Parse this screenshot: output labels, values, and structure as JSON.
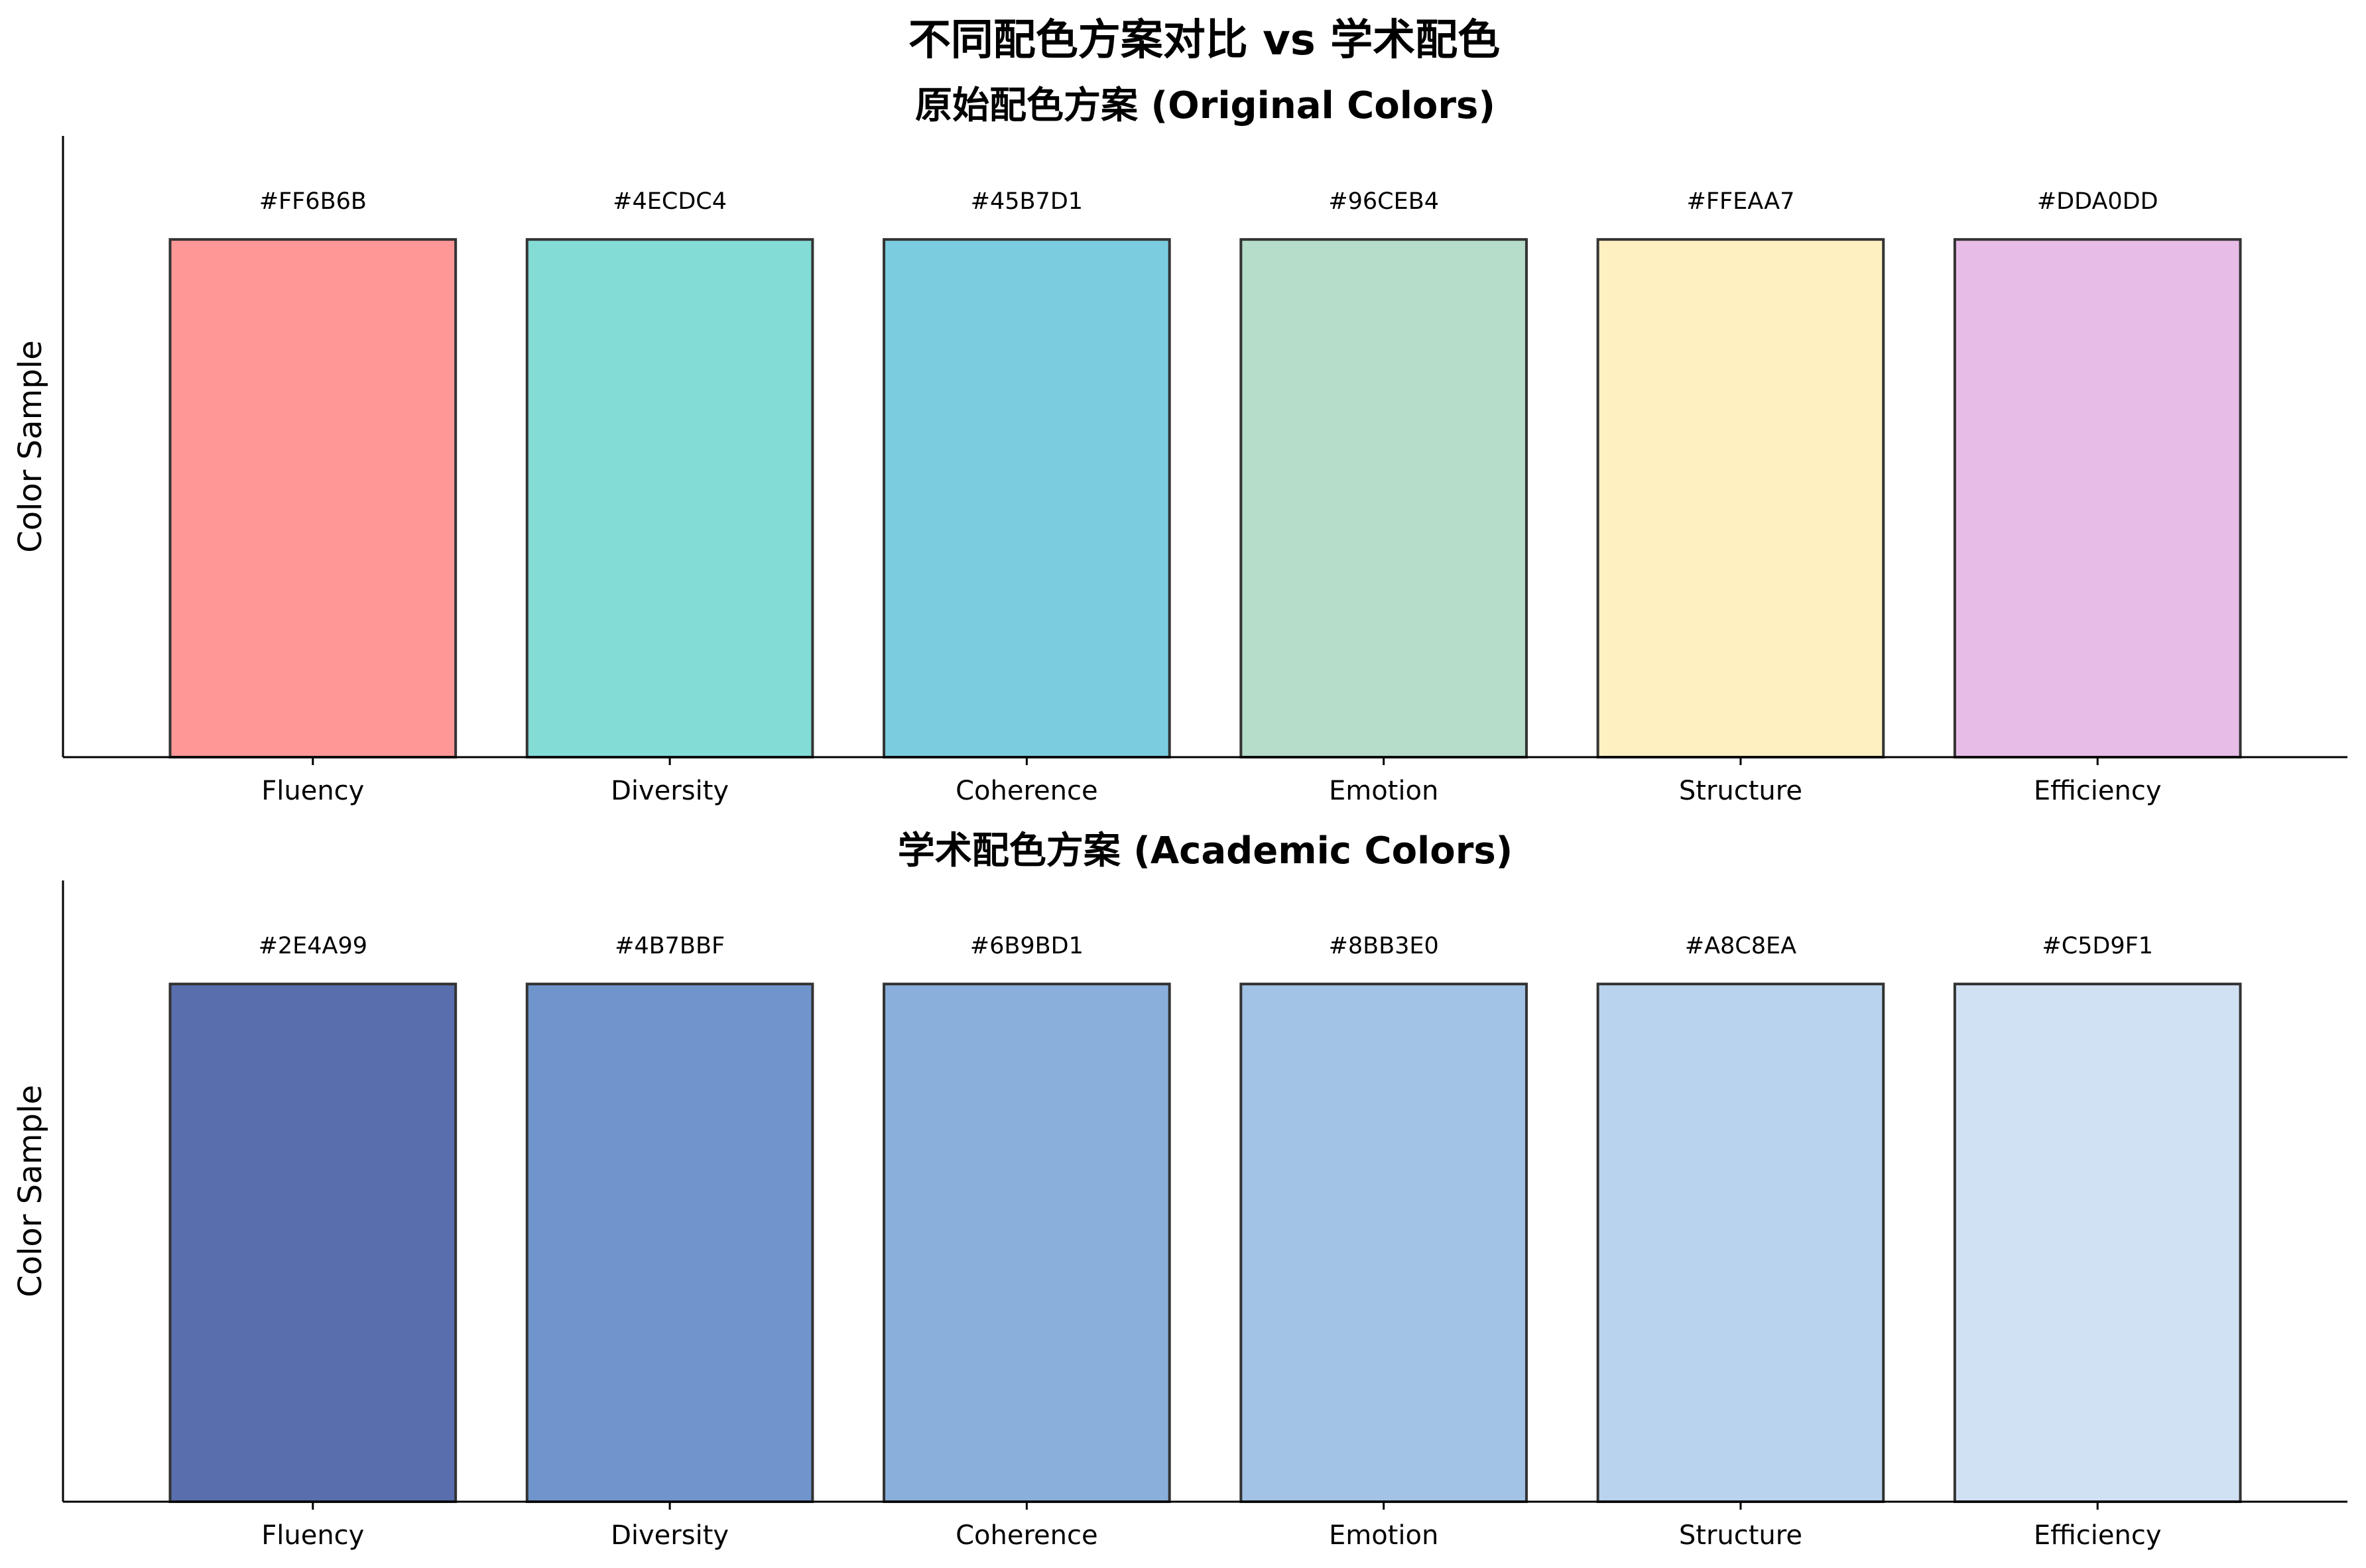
{
  "suptitle": "不同配色方案对比 vs 学术配色",
  "chart_data": [
    {
      "type": "bar",
      "title": "原始配色方案 (Original Colors)",
      "xlabel": "",
      "ylabel": "Color Sample",
      "categories": [
        "Fluency",
        "Diversity",
        "Coherence",
        "Emotion",
        "Structure",
        "Efficiency"
      ],
      "values": [
        1,
        1,
        1,
        1,
        1,
        1
      ],
      "bar_labels": [
        "#FF6B6B",
        "#4ECDC4",
        "#45B7D1",
        "#96CEB4",
        "#FFEAA7",
        "#DDA0DD"
      ],
      "colors": [
        "#FF6B6B",
        "#4ECDC4",
        "#45B7D1",
        "#96CEB4",
        "#FFEAA7",
        "#DDA0DD"
      ],
      "bar_alpha": 0.7,
      "edge_color": "#333333",
      "ylim": [
        0,
        1.2
      ],
      "y_ticks_visible": false,
      "grid": false,
      "spines": [
        "left",
        "bottom"
      ]
    },
    {
      "type": "bar",
      "title": "学术配色方案 (Academic Colors)",
      "xlabel": "",
      "ylabel": "Color Sample",
      "categories": [
        "Fluency",
        "Diversity",
        "Coherence",
        "Emotion",
        "Structure",
        "Efficiency"
      ],
      "values": [
        1,
        1,
        1,
        1,
        1,
        1
      ],
      "bar_labels": [
        "#2E4A99",
        "#4B7BBF",
        "#6B9BD1",
        "#8BB3E0",
        "#A8C8EA",
        "#C5D9F1"
      ],
      "colors": [
        "#2E4A99",
        "#4B7BBF",
        "#6B9BD1",
        "#8BB3E0",
        "#A8C8EA",
        "#C5D9F1"
      ],
      "bar_alpha": 0.8,
      "edge_color": "#333333",
      "ylim": [
        0,
        1.2
      ],
      "y_ticks_visible": false,
      "grid": false,
      "spines": [
        "left",
        "bottom"
      ]
    }
  ]
}
